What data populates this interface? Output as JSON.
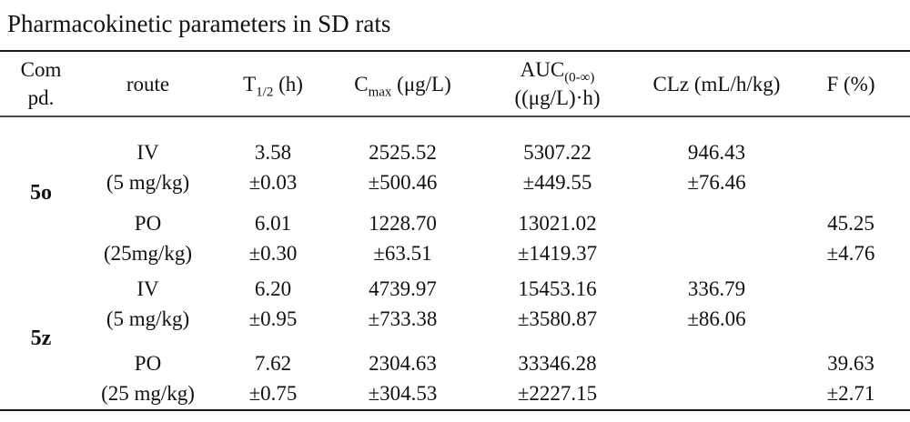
{
  "title": "Pharmacokinetic parameters in SD rats",
  "header": {
    "compound_line1": "Com",
    "compound_line2": "pd.",
    "route": "route",
    "t_half_base": "T",
    "t_half_sub": "1/2",
    "t_half_rest": " (h)",
    "cmax_base": "C",
    "cmax_sub": "max",
    "cmax_rest": " (μg/L)",
    "auc_base": "AUC",
    "auc_sub": "(0-∞)",
    "auc_line2": "((μg/L)·h)",
    "clz": "CLz (mL/h/kg)",
    "f": "F (%)"
  },
  "groups": [
    {
      "compound": "5o",
      "rows": [
        {
          "route": "IV",
          "dose": "(5 mg/kg)",
          "t_half": "3.58",
          "t_half_sd": "±0.03",
          "cmax": "2525.52",
          "cmax_sd": "±500.46",
          "auc": "5307.22",
          "auc_sd": "±449.55",
          "clz": "946.43",
          "clz_sd": "±76.46",
          "f": "",
          "f_sd": ""
        },
        {
          "route": "PO",
          "dose": "(25mg/kg)",
          "t_half": "6.01",
          "t_half_sd": "±0.30",
          "cmax": "1228.70",
          "cmax_sd": "±63.51",
          "auc": "13021.02",
          "auc_sd": "±1419.37",
          "clz": "",
          "clz_sd": "",
          "f": "45.25",
          "f_sd": "±4.76"
        }
      ]
    },
    {
      "compound": "5z",
      "rows": [
        {
          "route": "IV",
          "dose": "(5 mg/kg)",
          "t_half": "6.20",
          "t_half_sd": "±0.95",
          "cmax": "4739.97",
          "cmax_sd": "±733.38",
          "auc": "15453.16",
          "auc_sd": "±3580.87",
          "clz": "336.79",
          "clz_sd": "±86.06",
          "f": "",
          "f_sd": ""
        },
        {
          "route": "PO",
          "dose": "(25 mg/kg)",
          "t_half": "7.62",
          "t_half_sd": "±0.75",
          "cmax": "2304.63",
          "cmax_sd": "±304.53",
          "auc": "33346.28",
          "auc_sd": "±2227.15",
          "clz": "",
          "clz_sd": "",
          "f": "39.63",
          "f_sd": "±2.71"
        }
      ]
    }
  ]
}
